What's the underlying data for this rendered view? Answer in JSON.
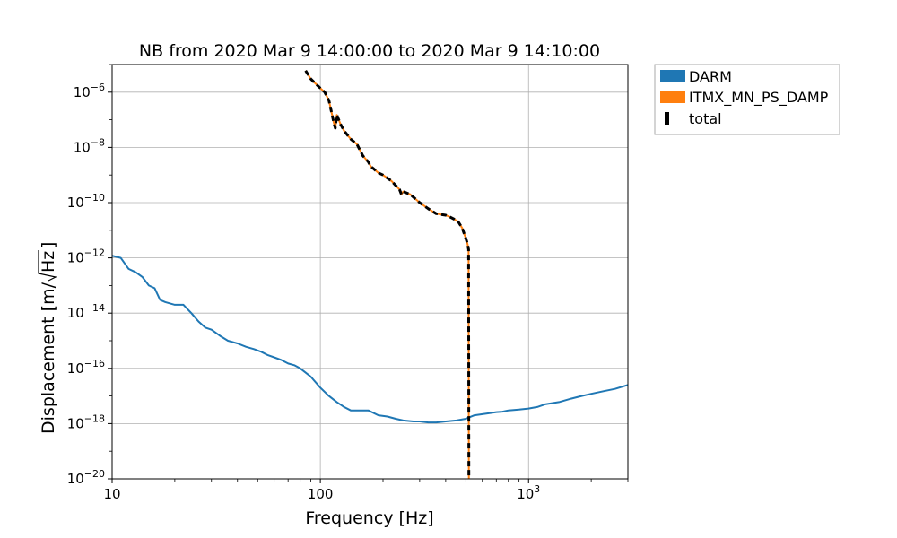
{
  "chart_data": {
    "type": "line",
    "title": "NB from 2020 Mar 9 14:00:00 to 2020 Mar 9 14:10:00",
    "xlabel": "Frequency [Hz]",
    "ylabel_prefix": "Displacement [m/",
    "ylabel_radicand": "Hz",
    "ylabel_suffix": "]",
    "xscale": "log",
    "yscale": "log",
    "xlim": [
      10,
      3000
    ],
    "ylim": [
      1e-20,
      1e-05
    ],
    "grid": true,
    "legend_placement": "outside-top-right",
    "x_ticks": [
      {
        "value": 10,
        "label": "10"
      },
      {
        "value": 100,
        "label": "100"
      },
      {
        "value": 1000,
        "label_base": "10",
        "label_exp": "3"
      }
    ],
    "y_ticks": [
      {
        "value": 1e-20,
        "exp": "−20"
      },
      {
        "value": 1e-18,
        "exp": "−18"
      },
      {
        "value": 1e-16,
        "exp": "−16"
      },
      {
        "value": 1e-14,
        "exp": "−14"
      },
      {
        "value": 1e-12,
        "exp": "−12"
      },
      {
        "value": 1e-10,
        "exp": "−10"
      },
      {
        "value": 1e-08,
        "exp": "−8"
      },
      {
        "value": 1e-06,
        "exp": "−6"
      }
    ],
    "y_tick_base": "10",
    "series": [
      {
        "name": "DARM",
        "color": "#1f77b4",
        "style": "solid",
        "x": [
          10,
          11,
          12,
          13,
          14,
          15,
          16,
          17,
          18,
          20,
          22,
          24,
          26,
          28,
          30,
          33,
          36,
          40,
          44,
          48,
          52,
          56,
          60,
          65,
          70,
          75,
          80,
          90,
          100,
          110,
          120,
          130,
          140,
          150,
          170,
          190,
          210,
          230,
          250,
          280,
          300,
          330,
          360,
          400,
          450,
          500,
          520,
          550,
          600,
          650,
          700,
          750,
          800,
          900,
          1000,
          1100,
          1200,
          1400,
          1600,
          1800,
          2000,
          2300,
          2600,
          3000
        ],
        "y": [
          1.2e-12,
          1e-12,
          4e-13,
          3e-13,
          2e-13,
          1e-13,
          8e-14,
          3e-14,
          2.5e-14,
          2e-14,
          2e-14,
          1e-14,
          5e-15,
          3e-15,
          2.5e-15,
          1.5e-15,
          1e-15,
          8e-16,
          6e-16,
          5e-16,
          4e-16,
          3e-16,
          2.5e-16,
          2e-16,
          1.5e-16,
          1.3e-16,
          1e-16,
          5e-17,
          2e-17,
          1e-17,
          6e-18,
          4e-18,
          3e-18,
          3e-18,
          3e-18,
          2e-18,
          1.8e-18,
          1.5e-18,
          1.3e-18,
          1.2e-18,
          1.2e-18,
          1.1e-18,
          1.1e-18,
          1.2e-18,
          1.3e-18,
          1.5e-18,
          1.7e-18,
          2e-18,
          2.2e-18,
          2.4e-18,
          2.6e-18,
          2.7e-18,
          3e-18,
          3.2e-18,
          3.5e-18,
          4e-18,
          5e-18,
          6e-18,
          8e-18,
          1e-17,
          1.2e-17,
          1.5e-17,
          1.8e-17,
          2.5e-17
        ]
      },
      {
        "name": "ITMX_MN_PS_DAMP",
        "color": "#ff7f0e",
        "style": "solid",
        "x": [
          85,
          90,
          95,
          100,
          105,
          110,
          113,
          116,
          118,
          120,
          125,
          130,
          140,
          150,
          160,
          170,
          175,
          180,
          190,
          200,
          220,
          240,
          245,
          250,
          270,
          300,
          330,
          360,
          400,
          420,
          440,
          460,
          480,
          500,
          510,
          515,
          517
        ],
        "y": [
          6e-06,
          3e-06,
          2e-06,
          1.4e-06,
          1e-06,
          5e-07,
          2e-07,
          8e-08,
          5e-08,
          1.5e-07,
          7e-08,
          4e-08,
          2e-08,
          1.3e-08,
          5e-09,
          3e-09,
          2e-09,
          1.7e-09,
          1.2e-09,
          1e-09,
          6e-10,
          3e-10,
          2e-10,
          2.5e-10,
          2e-10,
          1e-10,
          6e-11,
          4e-11,
          3.5e-11,
          3e-11,
          2.5e-11,
          2e-11,
          1.2e-11,
          5e-12,
          3e-12,
          2e-12,
          1e-20
        ]
      },
      {
        "name": "total",
        "color": "#000000",
        "style": "dashed",
        "x": [
          85,
          90,
          95,
          100,
          105,
          110,
          113,
          116,
          118,
          120,
          125,
          130,
          140,
          150,
          160,
          170,
          175,
          180,
          190,
          200,
          220,
          240,
          245,
          250,
          270,
          300,
          330,
          360,
          400,
          420,
          440,
          460,
          480,
          500,
          510,
          515,
          517
        ],
        "y": [
          6e-06,
          3e-06,
          2e-06,
          1.4e-06,
          1e-06,
          5e-07,
          2e-07,
          8e-08,
          5e-08,
          1.5e-07,
          7e-08,
          4e-08,
          2e-08,
          1.3e-08,
          5e-09,
          3e-09,
          2e-09,
          1.7e-09,
          1.2e-09,
          1e-09,
          6e-10,
          3e-10,
          2e-10,
          2.5e-10,
          2e-10,
          1e-10,
          6e-11,
          4e-11,
          3.5e-11,
          3e-11,
          2.5e-11,
          2e-11,
          1.2e-11,
          5e-12,
          3e-12,
          2e-12,
          1e-20
        ]
      }
    ]
  }
}
